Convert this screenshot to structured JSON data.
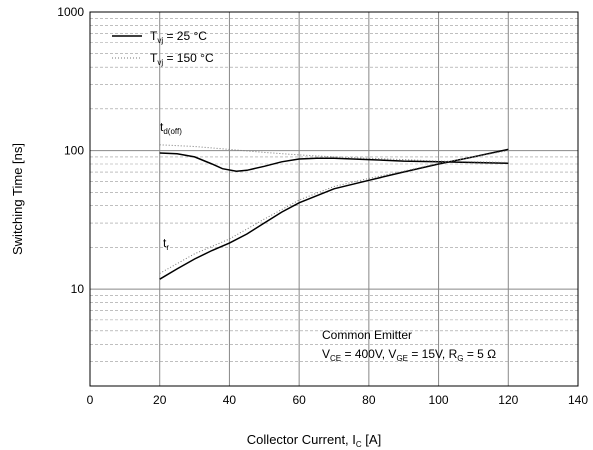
{
  "chart_data": {
    "type": "line",
    "xlabel": {
      "main": "Collector Current, I",
      "sub": "C",
      "unit": " [A]"
    },
    "ylabel": "Switching Time [ns]",
    "xlim": [
      0,
      140
    ],
    "ylim": [
      2,
      1000
    ],
    "yscale": "log",
    "grid": true,
    "x_ticks": [
      "0",
      "20",
      "40",
      "60",
      "80",
      "100",
      "120",
      "140"
    ],
    "y_ticks": [
      {
        "value": 10,
        "label": "10"
      },
      {
        "value": 100,
        "label": "100"
      },
      {
        "value": 1000,
        "label": "1000"
      }
    ],
    "legend": {
      "position": "top-left",
      "entries": [
        {
          "main": "T",
          "sub": "vj",
          "rest": " = 25 °C",
          "style": "solid"
        },
        {
          "main": "T",
          "sub": "vj",
          "rest": " = 150 °C",
          "style": "dotted"
        }
      ]
    },
    "annotations": {
      "td_off": {
        "main": "t",
        "sub": "d(off)"
      },
      "tr": {
        "main": "t",
        "sub": "r"
      },
      "conditions_line1": "Common Emitter",
      "conditions_line2": [
        {
          "main": "V",
          "sub": "CE",
          "rest": " = 400V, "
        },
        {
          "main": "V",
          "sub": "GE",
          "rest": " = 15V, "
        },
        {
          "main": "R",
          "sub": "G",
          "rest": " = 5 Ω"
        }
      ]
    },
    "series": [
      {
        "curve": "td_off",
        "temp": "25C",
        "style": "solid",
        "x": [
          20,
          25,
          30,
          35,
          38,
          42,
          45,
          50,
          55,
          60,
          65,
          70,
          80,
          90,
          100,
          110,
          120
        ],
        "y": [
          96,
          95,
          90,
          80,
          74,
          71,
          72,
          77,
          83,
          87,
          88,
          88,
          86,
          84,
          83,
          82,
          81
        ]
      },
      {
        "curve": "td_off",
        "temp": "150C",
        "style": "dotted",
        "x": [
          20,
          30,
          40,
          50,
          60,
          70,
          80,
          90,
          100,
          110,
          120
        ],
        "y": [
          110,
          107,
          102,
          97,
          93,
          90,
          88,
          86,
          84,
          83,
          82
        ]
      },
      {
        "curve": "tr",
        "temp": "25C",
        "style": "solid",
        "x": [
          20,
          25,
          30,
          35,
          40,
          45,
          50,
          55,
          60,
          70,
          80,
          90,
          100,
          110,
          120
        ],
        "y": [
          11.8,
          14,
          16.5,
          19,
          21.5,
          25,
          30,
          36,
          42,
          53,
          61,
          70,
          80,
          90,
          102
        ]
      },
      {
        "curve": "tr",
        "temp": "150C",
        "style": "dotted",
        "x": [
          20,
          30,
          40,
          50,
          60,
          70,
          80,
          90,
          100,
          110,
          120
        ],
        "y": [
          13,
          18,
          23,
          32,
          44,
          55,
          63,
          71,
          81,
          90,
          100
        ]
      }
    ]
  }
}
